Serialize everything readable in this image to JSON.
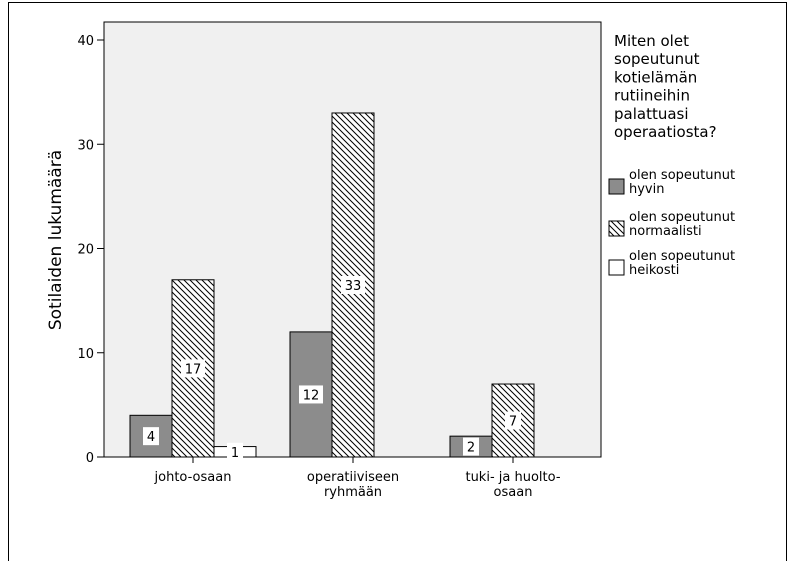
{
  "chart_data": {
    "type": "bar",
    "categories": [
      [
        "johto-osaan"
      ],
      [
        "operatiiviseen",
        "ryhmään"
      ],
      [
        "tuki- ja huolto-",
        "osaan"
      ]
    ],
    "series": [
      {
        "name": "olen sopeutunut hyvin",
        "name_lines": [
          "olen sopeutunut",
          "hyvin"
        ],
        "values": [
          4,
          12,
          2
        ],
        "color": "#8c8c8c",
        "pattern": "solid"
      },
      {
        "name": "olen sopeutunut normaalisti",
        "name_lines": [
          "olen sopeutunut",
          "normaalisti"
        ],
        "values": [
          17,
          33,
          7
        ],
        "color": "#ffffff",
        "pattern": "hatch"
      },
      {
        "name": "olen sopeutunut heikosti",
        "name_lines": [
          "olen sopeutunut",
          "heikosti"
        ],
        "values": [
          1,
          null,
          null
        ],
        "color": "#ffffff",
        "pattern": "solid"
      }
    ],
    "data_labels": [
      [
        "4",
        "12",
        "2"
      ],
      [
        "17",
        "33",
        "7"
      ],
      [
        "1",
        "",
        ""
      ]
    ],
    "ylabel": "Sotilaiden lukumäärä",
    "xlabel": "",
    "ylim": [
      0,
      40
    ],
    "yticks": [
      0,
      10,
      20,
      30,
      40
    ],
    "legend_title_lines": [
      "Miten olet",
      "sopeutunut",
      "kotielämän",
      "rutiineihin",
      "palattuasi",
      "operaatiosta?"
    ],
    "legend_position": "right",
    "plot_background": "#f0f0f0",
    "grid": false
  }
}
